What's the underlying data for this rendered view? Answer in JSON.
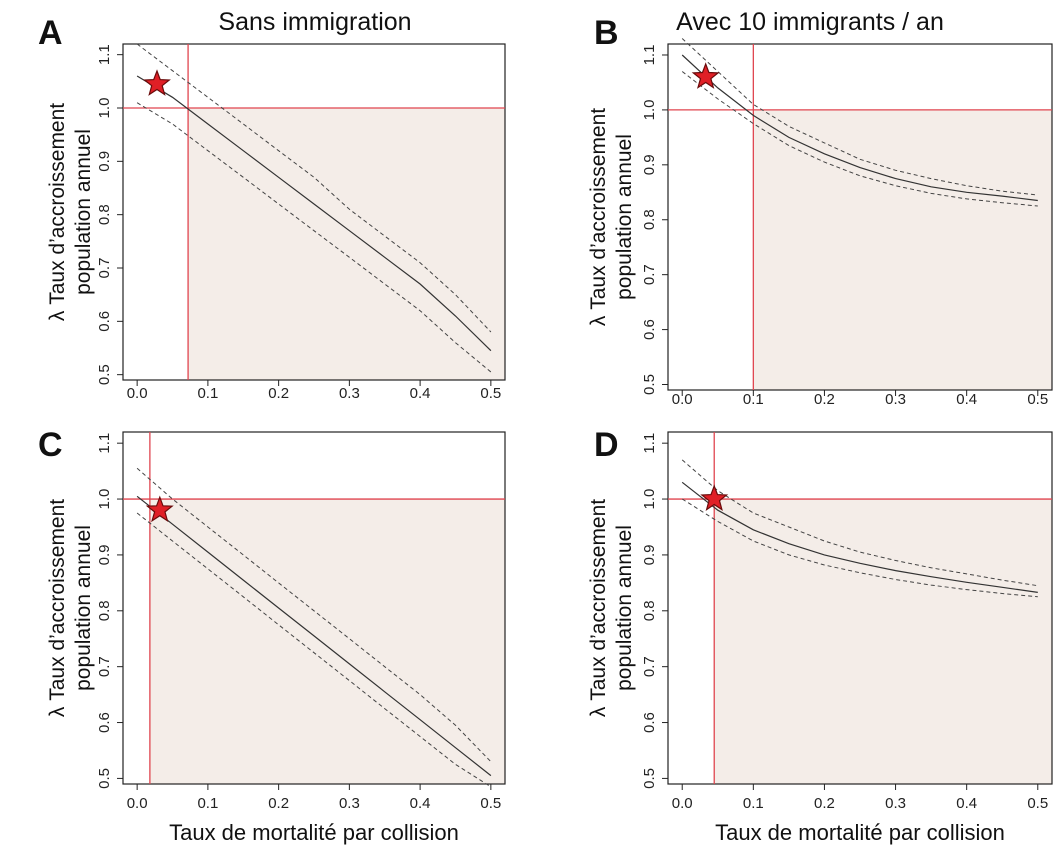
{
  "column_titles": [
    "Sans immigration",
    "Avec 10 immigrants / an"
  ],
  "colors": {
    "shade": "#f4ede8",
    "ref_line": "#e0454f",
    "mean_line": "#333333",
    "ci_line": "#444444",
    "star_fill": "#e01f26",
    "star_stroke": "#6a0b0b",
    "frame": "#222222"
  },
  "chart_data": [
    {
      "type": "line",
      "panel": "A",
      "title": "Sans immigration",
      "xlabel": "",
      "ylabel_lines": [
        "λ Taux d’accroissement",
        "population annuel"
      ],
      "xlim": [
        0,
        0.5
      ],
      "ylim": [
        0.5,
        1.12
      ],
      "xticks": [
        "0.0",
        "0.1",
        "0.2",
        "0.3",
        "0.4",
        "0.5"
      ],
      "yticks": [
        "0.5",
        "0.6",
        "0.7",
        "0.8",
        "0.9",
        "1.0",
        "1.1"
      ],
      "x": [
        0.0,
        0.05,
        0.1,
        0.15,
        0.2,
        0.25,
        0.3,
        0.35,
        0.4,
        0.45,
        0.5
      ],
      "series": [
        {
          "role": "mean",
          "values": [
            1.06,
            1.02,
            0.97,
            0.92,
            0.87,
            0.82,
            0.77,
            0.72,
            0.67,
            0.61,
            0.545
          ]
        },
        {
          "role": "upper",
          "values": [
            1.12,
            1.07,
            1.02,
            0.97,
            0.92,
            0.87,
            0.81,
            0.76,
            0.71,
            0.65,
            0.58
          ]
        },
        {
          "role": "lower",
          "values": [
            1.01,
            0.97,
            0.92,
            0.87,
            0.82,
            0.77,
            0.72,
            0.67,
            0.62,
            0.56,
            0.505
          ]
        }
      ],
      "threshold_x": 0.072,
      "threshold_y": 1.0,
      "star": [
        0.028,
        1.045
      ]
    },
    {
      "type": "line",
      "panel": "B",
      "title": "Avec 10 immigrants / an",
      "xlabel": "",
      "ylabel_lines": [
        "λ Taux d’accroissement",
        "population annuel"
      ],
      "xlim": [
        0,
        0.5
      ],
      "ylim": [
        0.5,
        1.12
      ],
      "xticks": [
        "0.0",
        "0.1",
        "0.2",
        "0.3",
        "0.4",
        "0.5"
      ],
      "yticks": [
        "0.5",
        "0.6",
        "0.7",
        "0.8",
        "0.9",
        "1.0",
        "1.1"
      ],
      "x": [
        0.0,
        0.05,
        0.1,
        0.15,
        0.2,
        0.25,
        0.3,
        0.35,
        0.4,
        0.45,
        0.5
      ],
      "series": [
        {
          "role": "mean",
          "values": [
            1.1,
            1.04,
            0.99,
            0.95,
            0.92,
            0.895,
            0.875,
            0.86,
            0.85,
            0.843,
            0.835
          ]
        },
        {
          "role": "upper",
          "values": [
            1.13,
            1.07,
            1.01,
            0.97,
            0.94,
            0.91,
            0.89,
            0.875,
            0.862,
            0.852,
            0.845
          ]
        },
        {
          "role": "lower",
          "values": [
            1.07,
            1.02,
            0.975,
            0.935,
            0.905,
            0.88,
            0.862,
            0.848,
            0.838,
            0.831,
            0.825
          ]
        }
      ],
      "threshold_x": 0.1,
      "threshold_y": 1.0,
      "star": [
        0.033,
        1.06
      ]
    },
    {
      "type": "line",
      "panel": "C",
      "title": "",
      "xlabel": "Taux de mortalité par collision",
      "ylabel_lines": [
        "λ Taux d’accroissement",
        "population annuel"
      ],
      "xlim": [
        0,
        0.5
      ],
      "ylim": [
        0.5,
        1.12
      ],
      "xticks": [
        "0.0",
        "0.1",
        "0.2",
        "0.3",
        "0.4",
        "0.5"
      ],
      "yticks": [
        "0.5",
        "0.6",
        "0.7",
        "0.8",
        "0.9",
        "1.0",
        "1.1"
      ],
      "x": [
        0.0,
        0.05,
        0.1,
        0.15,
        0.2,
        0.25,
        0.3,
        0.35,
        0.4,
        0.45,
        0.5
      ],
      "series": [
        {
          "role": "mean",
          "values": [
            1.005,
            0.955,
            0.905,
            0.855,
            0.805,
            0.755,
            0.705,
            0.655,
            0.605,
            0.555,
            0.505
          ]
        },
        {
          "role": "upper",
          "values": [
            1.055,
            1.0,
            0.95,
            0.9,
            0.85,
            0.8,
            0.75,
            0.7,
            0.65,
            0.595,
            0.53
          ]
        },
        {
          "role": "lower",
          "values": [
            0.975,
            0.925,
            0.875,
            0.825,
            0.775,
            0.725,
            0.675,
            0.625,
            0.575,
            0.525,
            0.485
          ]
        }
      ],
      "threshold_x": 0.018,
      "threshold_y": 1.0,
      "star": [
        0.032,
        0.98
      ]
    },
    {
      "type": "line",
      "panel": "D",
      "title": "",
      "xlabel": "Taux de mortalité par collision",
      "ylabel_lines": [
        "λ Taux d’accroissement",
        "population annuel"
      ],
      "xlim": [
        0,
        0.5
      ],
      "ylim": [
        0.5,
        1.12
      ],
      "xticks": [
        "0.0",
        "0.1",
        "0.2",
        "0.3",
        "0.4",
        "0.5"
      ],
      "yticks": [
        "0.5",
        "0.6",
        "0.7",
        "0.8",
        "0.9",
        "1.0",
        "1.1"
      ],
      "x": [
        0.0,
        0.05,
        0.1,
        0.15,
        0.2,
        0.25,
        0.3,
        0.35,
        0.4,
        0.45,
        0.5
      ],
      "series": [
        {
          "role": "mean",
          "values": [
            1.03,
            0.98,
            0.945,
            0.92,
            0.9,
            0.885,
            0.872,
            0.861,
            0.851,
            0.842,
            0.833
          ]
        },
        {
          "role": "upper",
          "values": [
            1.07,
            1.015,
            0.975,
            0.95,
            0.925,
            0.905,
            0.89,
            0.877,
            0.866,
            0.855,
            0.845
          ]
        },
        {
          "role": "lower",
          "values": [
            1.0,
            0.96,
            0.925,
            0.9,
            0.882,
            0.868,
            0.856,
            0.846,
            0.838,
            0.831,
            0.825
          ]
        }
      ],
      "threshold_x": 0.045,
      "threshold_y": 1.0,
      "star": [
        0.045,
        1.0
      ]
    }
  ]
}
